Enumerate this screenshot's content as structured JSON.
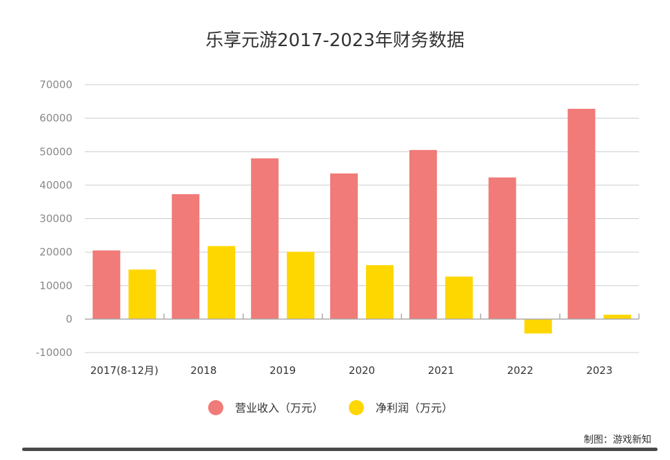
{
  "chart_data": {
    "type": "bar",
    "title": "乐享元游2017-2023年财务数据",
    "categories": [
      "2017(8-12月)",
      "2018",
      "2019",
      "2020",
      "2021",
      "2022",
      "2023"
    ],
    "series": [
      {
        "name": "营业收入（万元）",
        "color": "#f07b78",
        "values": [
          20500,
          37300,
          48000,
          43500,
          50500,
          42300,
          62800
        ]
      },
      {
        "name": "净利润（万元）",
        "color": "#ffd700",
        "values": [
          14800,
          21800,
          20100,
          16100,
          12700,
          -4300,
          1300
        ]
      }
    ],
    "ylim": [
      -10000,
      70000
    ],
    "yticks": [
      -10000,
      0,
      10000,
      20000,
      30000,
      40000,
      50000,
      60000,
      70000
    ],
    "xlabel": "",
    "ylabel": "",
    "grid": true,
    "legend_position": "bottom-center"
  },
  "credit": "制图：游戏新知",
  "colors": {
    "grid": "#cccccc",
    "axis": "#aaaaaa",
    "bottom_bar": "#4a4a4a"
  }
}
